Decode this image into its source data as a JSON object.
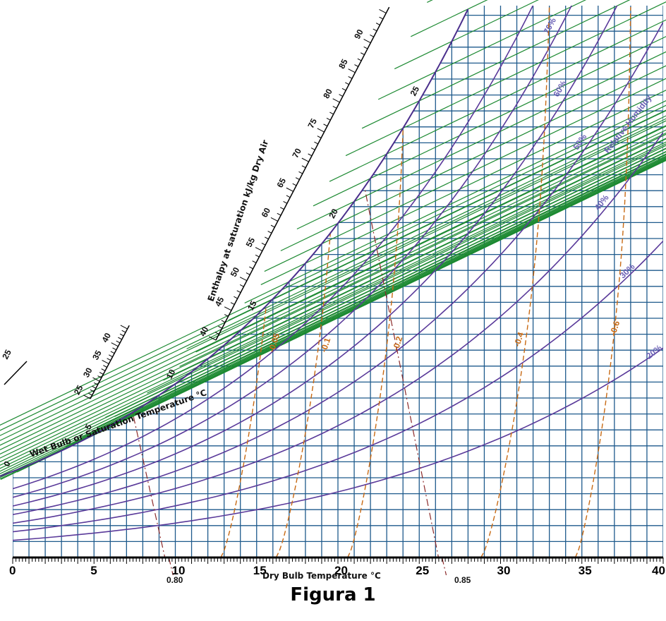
{
  "caption": "Figura 1",
  "colors": {
    "grid": "#1e5a8c",
    "enthalpy": "#1d8a32",
    "saturation": "#4b2f8c",
    "rh": "#5a3a9a",
    "rh_text": "#6a5fb5",
    "humidity_ratio": "#c86a14",
    "volume": "#8c2a2a"
  },
  "chart_data": {
    "type": "psychrometric",
    "title": "",
    "xlabel": "Dry Bulb Temperature   °C",
    "xlim": [
      0,
      40
    ],
    "x_ticks": [
      "0",
      "5",
      "10",
      "15",
      "20",
      "25",
      "30",
      "35",
      "40"
    ],
    "wet_bulb_scale_label": "Wet Bulb or Saturation Temperature   °C",
    "wet_bulb_ticks": [
      "0",
      "5",
      "10",
      "15",
      "20",
      "25"
    ],
    "enthalpy_scale_label": "Enthalpy at saturation  kJ/kg Dry Air",
    "enthalpy_ticks_lower": [
      "25",
      "30",
      "35",
      "40"
    ],
    "enthalpy_ticks_upper": [
      "40",
      "45",
      "50",
      "55",
      "60",
      "65",
      "70",
      "75",
      "80",
      "85",
      "90"
    ],
    "relative_humidity_label": "Relative Humidity",
    "relative_humidity_lines": [
      {
        "label": "80%",
        "value": 80
      },
      {
        "label": "70%",
        "value": 70
      },
      {
        "label": "60%",
        "value": 60
      },
      {
        "label": "50%",
        "value": 50
      },
      {
        "label": "40%",
        "value": 40
      },
      {
        "label": "30%",
        "value": 30
      },
      {
        "label": "20%",
        "value": 20
      }
    ],
    "sensible_heat_factor_lines": [
      "-0.05",
      "-0.1",
      "-0.2",
      "-0.4",
      "-0.6"
    ],
    "specific_volume_lines": [
      "0.80",
      "0.85"
    ]
  }
}
